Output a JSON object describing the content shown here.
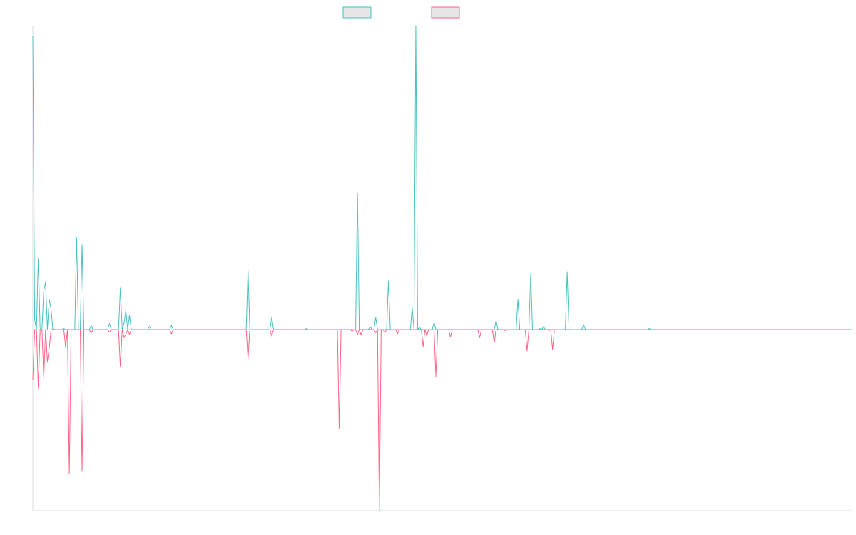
{
  "chart_data": {
    "type": "line",
    "title": "",
    "xlabel": "",
    "ylabel": "",
    "grid": false,
    "legend_position": "top-center",
    "xlim": [
      0,
      239
    ],
    "ylim": [
      -30,
      30
    ],
    "series": [
      {
        "name": "",
        "color": "#4bc0c0",
        "fill": "#e6e6e6",
        "direction": "up",
        "values": [
          29,
          1,
          0,
          7,
          0,
          0,
          3.8,
          4.7,
          0,
          3,
          2,
          0,
          0,
          0,
          0,
          0,
          0,
          0.1,
          0,
          0,
          0,
          0,
          0,
          0,
          9.1,
          0,
          0,
          8.4,
          0,
          0,
          0,
          0,
          0.4,
          0,
          0,
          0,
          0,
          0,
          0,
          0,
          0,
          0,
          0.6,
          0,
          0,
          0,
          0,
          0,
          4.1,
          0,
          0.6,
          1.9,
          0,
          1.4,
          0,
          0,
          0,
          0,
          0,
          0,
          0,
          0,
          0,
          0,
          0.3,
          0,
          0,
          0,
          0,
          0,
          0,
          0,
          0,
          0,
          0,
          0,
          0.4,
          0,
          0,
          0,
          0,
          0,
          0,
          0,
          0,
          0,
          0,
          0,
          0,
          0,
          0,
          0,
          0,
          0,
          0,
          0,
          0,
          0,
          0,
          0,
          0,
          0,
          0,
          0,
          0,
          0,
          0,
          0,
          0,
          0,
          0,
          0,
          0,
          0,
          0,
          0,
          0,
          0,
          5.9,
          0,
          0,
          0,
          0,
          0,
          0,
          0,
          0,
          0,
          0,
          0,
          0,
          1.2,
          0,
          0,
          0,
          0,
          0,
          0,
          0,
          0,
          0,
          0,
          0,
          0,
          0,
          0,
          0,
          0,
          0,
          0,
          0.1,
          0,
          0,
          0,
          0,
          0,
          0,
          0,
          0,
          0,
          0,
          0,
          0,
          0,
          0,
          0,
          0,
          0,
          0,
          0,
          0,
          0,
          0,
          0,
          0,
          0,
          0,
          0,
          13.5,
          0,
          0,
          0,
          0,
          0,
          0,
          0.3,
          0,
          0,
          1.2,
          0,
          0,
          0,
          0,
          0,
          0,
          4.8,
          0,
          0,
          0,
          0,
          0,
          0,
          0,
          0,
          0,
          0,
          0,
          0,
          2.2,
          0,
          30,
          0,
          0.2,
          0,
          0,
          0,
          0,
          0,
          0,
          0,
          0.7,
          0,
          0,
          0,
          0,
          0,
          0,
          0,
          0,
          0,
          0,
          0,
          0,
          0,
          0,
          0,
          0,
          0,
          0,
          0,
          0,
          0,
          0,
          0,
          0,
          0,
          0,
          0,
          0,
          0,
          0,
          0,
          0,
          0,
          0.9,
          0,
          0,
          0,
          0,
          0,
          0,
          0,
          0,
          0,
          0,
          0,
          3,
          0,
          0,
          0,
          0,
          0,
          0,
          5.5,
          0,
          0,
          0,
          0,
          0.1,
          0,
          0.3,
          0,
          0,
          0,
          0,
          0,
          0,
          0,
          0,
          0,
          0,
          0,
          0,
          5.7,
          0,
          0,
          0,
          0,
          0,
          0,
          0,
          0,
          0.5,
          0,
          0,
          0,
          0,
          0,
          0,
          0,
          0,
          0,
          0,
          0,
          0,
          0,
          0,
          0,
          0,
          0,
          0,
          0,
          0,
          0,
          0,
          0,
          0,
          0,
          0,
          0,
          0,
          0,
          0,
          0,
          0,
          0,
          0,
          0,
          0.1,
          0,
          0,
          0,
          0,
          0,
          0,
          0,
          0,
          0,
          0,
          0,
          0,
          0,
          0,
          0,
          0,
          0,
          0,
          0,
          0,
          0,
          0,
          0,
          0,
          0,
          0,
          0,
          0,
          0,
          0,
          0,
          0,
          0,
          0,
          0,
          0,
          0,
          0,
          0,
          0,
          0,
          0,
          0,
          0,
          0,
          0,
          0,
          0,
          0,
          0,
          0,
          0,
          0,
          0,
          0,
          0,
          0,
          0,
          0,
          0,
          0,
          0,
          0,
          0,
          0,
          0,
          0,
          0,
          0,
          0,
          0,
          0,
          0,
          0,
          0,
          0,
          0,
          0,
          0,
          0,
          0,
          0,
          0,
          0,
          0,
          0,
          0,
          0,
          0,
          0,
          0,
          0,
          0,
          0,
          0,
          0,
          0,
          0,
          0,
          0,
          0,
          0,
          0,
          0,
          0,
          0,
          0,
          0,
          0,
          0,
          0
        ]
      },
      {
        "name": "",
        "color": "#ff6384",
        "fill": "#e6e6e6",
        "direction": "down",
        "values": []
      }
    ]
  }
}
